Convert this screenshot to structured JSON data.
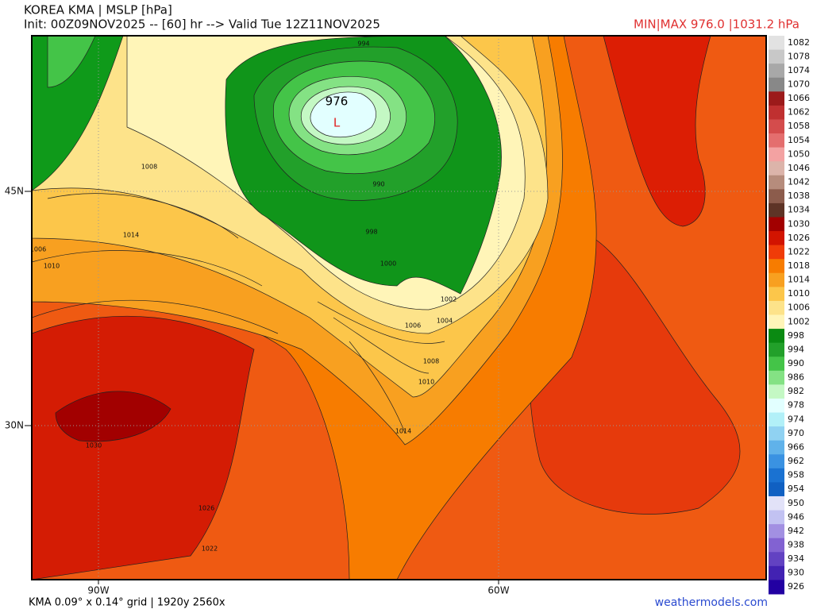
{
  "header": {
    "title": "KOREA KMA | MSLP [hPa]",
    "subtitle": "Init: 00Z09NOV2025 -- [60] hr --> Valid Tue 12Z11NOV2025",
    "minmax": "MIN|MAX 976.0 |1031.2 hPa"
  },
  "map": {
    "low_value": "976",
    "low_marker": "L",
    "contour_labels": [
      "1008",
      "1014",
      "1006",
      "1010",
      "994",
      "990",
      "998",
      "1000",
      "1002",
      "1004",
      "1006",
      "1008",
      "1010",
      "1014",
      "1030",
      "1026",
      "1022"
    ],
    "lat_labels": [
      "45N",
      "30N"
    ],
    "lon_labels": [
      "90W",
      "60W"
    ]
  },
  "colorbar": [
    {
      "label": "1082",
      "color": "#e2e2e2"
    },
    {
      "label": "1078",
      "color": "#c8c8c8"
    },
    {
      "label": "1074",
      "color": "#a8a8a8"
    },
    {
      "label": "1070",
      "color": "#888888"
    },
    {
      "label": "1066",
      "color": "#9c1a1a"
    },
    {
      "label": "1062",
      "color": "#c03030"
    },
    {
      "label": "1058",
      "color": "#d44c4c"
    },
    {
      "label": "1054",
      "color": "#e46e6e"
    },
    {
      "label": "1050",
      "color": "#f3a2a2"
    },
    {
      "label": "1046",
      "color": "#dcb4aa"
    },
    {
      "label": "1042",
      "color": "#b68c7c"
    },
    {
      "label": "1038",
      "color": "#8c5c4c"
    },
    {
      "label": "1034",
      "color": "#5e3426"
    },
    {
      "label": "1030",
      "color": "#a20000"
    },
    {
      "label": "1026",
      "color": "#d21400"
    },
    {
      "label": "1022",
      "color": "#f03c08"
    },
    {
      "label": "1018",
      "color": "#f77c00"
    },
    {
      "label": "1014",
      "color": "#f8a020"
    },
    {
      "label": "1010",
      "color": "#fcc64a"
    },
    {
      "label": "1006",
      "color": "#fde38a"
    },
    {
      "label": "1002",
      "color": "#fff5b8"
    },
    {
      "label": "998",
      "color": "#0a8a12"
    },
    {
      "label": "994",
      "color": "#22a02a"
    },
    {
      "label": "990",
      "color": "#44c448"
    },
    {
      "label": "986",
      "color": "#84e284"
    },
    {
      "label": "982",
      "color": "#c4f8c4"
    },
    {
      "label": "978",
      "color": "#e2ffff"
    },
    {
      "label": "974",
      "color": "#b2f0f8"
    },
    {
      "label": "970",
      "color": "#90d2f2"
    },
    {
      "label": "966",
      "color": "#60b2ea"
    },
    {
      "label": "962",
      "color": "#3a92e2"
    },
    {
      "label": "958",
      "color": "#1a72d2"
    },
    {
      "label": "954",
      "color": "#1060c2"
    },
    {
      "label": "950",
      "color": "#e2e2f8"
    },
    {
      "label": "946",
      "color": "#c2c2f2"
    },
    {
      "label": "942",
      "color": "#a290e2"
    },
    {
      "label": "938",
      "color": "#8262d2"
    },
    {
      "label": "934",
      "color": "#6242c2"
    },
    {
      "label": "930",
      "color": "#4222b2"
    },
    {
      "label": "926",
      "color": "#2200a2"
    }
  ],
  "footer": {
    "grid": "KMA 0.09° x 0.14° grid | 1920y 2560x",
    "site": "weathermodels.com"
  }
}
